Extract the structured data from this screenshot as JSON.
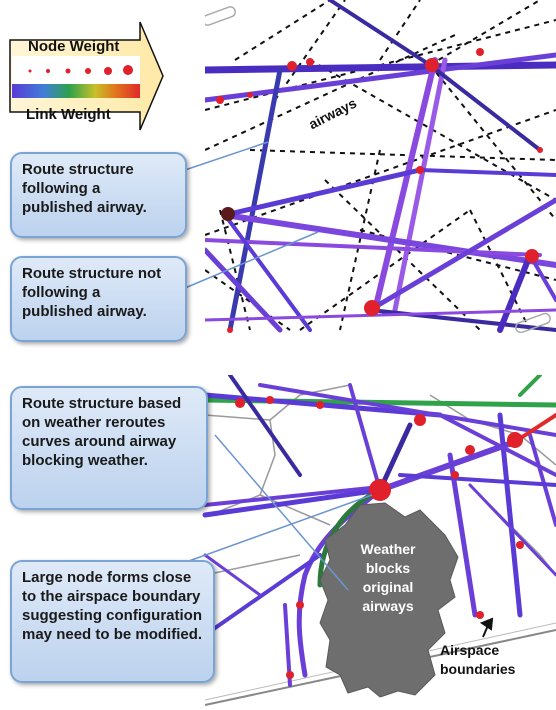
{
  "legend": {
    "node_weight_label": "Node Weight",
    "link_weight_label": "Link Weight",
    "gradient_colors": [
      "#5a3bd6",
      "#3f7fd8",
      "#2fa24a",
      "#c8c02a",
      "#e07a1c",
      "#e02a2a"
    ]
  },
  "top_panel": {
    "airways_label": "airways",
    "callouts": [
      "Route structure following a published airway.",
      "Route structure not following a published airway."
    ]
  },
  "bottom_panel": {
    "callouts": [
      "Route structure based on weather reroutes curves around airway blocking weather.",
      "Large node forms close to the airspace boundary suggesting configuration may need to be modified."
    ],
    "weather_label": "Weather blocks original airways",
    "airspace_label": "Airspace boundaries"
  },
  "colors": {
    "route": "#6a3fd8",
    "route_dark": "#3a2aa0",
    "node": "#e0202a",
    "weather": "#707070",
    "callout_border": "#7aa3d6"
  }
}
